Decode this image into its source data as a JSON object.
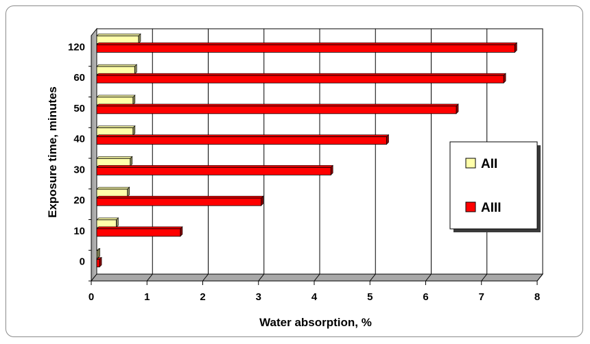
{
  "chart_data": {
    "type": "bar",
    "orientation": "horizontal",
    "style": "3d",
    "categories": [
      "0",
      "10",
      "20",
      "30",
      "40",
      "50",
      "60",
      "120"
    ],
    "series": [
      {
        "name": "AII",
        "color": "#ffffaa",
        "values": [
          0.02,
          0.35,
          0.55,
          0.6,
          0.65,
          0.65,
          0.68,
          0.75
        ]
      },
      {
        "name": "AIII",
        "color": "#ff0000",
        "values": [
          0.05,
          1.5,
          2.95,
          4.2,
          5.2,
          6.45,
          7.3,
          7.5
        ]
      }
    ],
    "xlabel": "Water absorption, %",
    "ylabel": "Exposure time, minutes",
    "xlim": [
      0,
      8
    ],
    "xticks": [
      "0",
      "1",
      "2",
      "3",
      "4",
      "5",
      "6",
      "7",
      "8"
    ],
    "grid": "vertical",
    "legend_position": "right"
  }
}
